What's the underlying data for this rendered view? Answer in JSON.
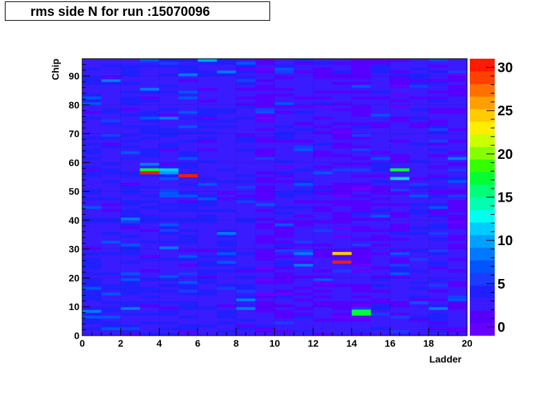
{
  "chart_data": {
    "type": "heatmap",
    "title": "rms side N for run :15070096",
    "xlabel": "Ladder",
    "ylabel": "Chip",
    "xlim": [
      0,
      20
    ],
    "ylim": [
      0,
      96
    ],
    "x_ticks": [
      0,
      2,
      4,
      6,
      8,
      10,
      12,
      14,
      16,
      18,
      20
    ],
    "y_ticks": [
      0,
      10,
      20,
      30,
      40,
      50,
      60,
      70,
      80,
      90
    ],
    "z_range": [
      -1,
      31
    ],
    "colorbar_ticks": [
      0,
      5,
      10,
      15,
      20,
      25,
      30
    ],
    "grid": true,
    "background_level": "values mostly between 0 and 6",
    "hot_cells": [
      {
        "ladder": 3,
        "chip": 57,
        "value": 17
      },
      {
        "ladder": 3,
        "chip": 56,
        "value": 30
      },
      {
        "ladder": 4,
        "chip": 57,
        "value": 12
      },
      {
        "ladder": 4,
        "chip": 56,
        "value": 10
      },
      {
        "ladder": 5,
        "chip": 55,
        "value": 30
      },
      {
        "ladder": 6,
        "chip": 95,
        "value": 10
      },
      {
        "ladder": 13,
        "chip": 28,
        "value": 25
      },
      {
        "ladder": 13,
        "chip": 25,
        "value": 30
      },
      {
        "ladder": 14,
        "chip": 8,
        "value": 17
      },
      {
        "ladder": 14,
        "chip": 7,
        "value": 17
      },
      {
        "ladder": 16,
        "chip": 57,
        "value": 17
      },
      {
        "ladder": 16,
        "chip": 54,
        "value": 11
      }
    ],
    "palette": [
      "#6600ff",
      "#5500ff",
      "#3a1aff",
      "#2020ff",
      "#1a3cff",
      "#0055ff",
      "#0078ff",
      "#00a0ff",
      "#00ccff",
      "#00fff0",
      "#00ffb0",
      "#00ff78",
      "#00ff33",
      "#33ff00",
      "#88ff00",
      "#ccff00",
      "#ffee00",
      "#ffcc00",
      "#ffa000",
      "#ff7000",
      "#ff4000",
      "#ff1a00"
    ]
  }
}
